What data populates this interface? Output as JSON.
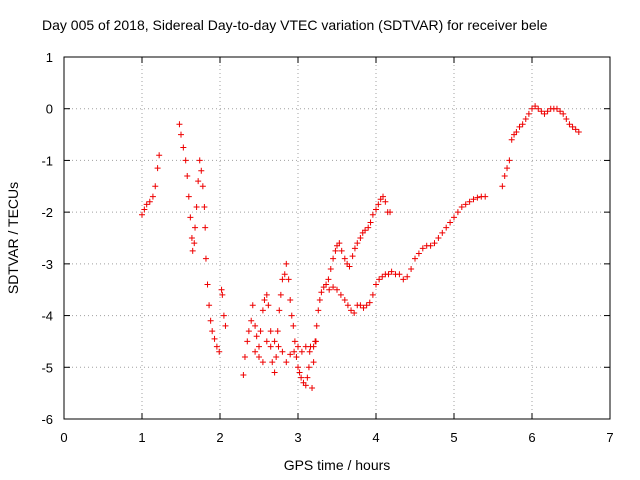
{
  "chart_data": {
    "type": "scatter",
    "title": "Day 005 of 2018, Sidereal Day-to-day VTEC variation (SDTVAR) for receiver bele",
    "xlabel": "GPS time / hours",
    "ylabel": "SDTVAR / TECUs",
    "xlim": [
      0,
      7
    ],
    "ylim": [
      -6,
      1
    ],
    "xticks": [
      0,
      1,
      2,
      3,
      4,
      5,
      6,
      7
    ],
    "yticks": [
      -6,
      -5,
      -4,
      -3,
      -2,
      -1,
      0,
      1
    ],
    "xtick_labels": [
      "0",
      "1",
      "2",
      "3",
      "4",
      "5",
      "6",
      "7"
    ],
    "ytick_labels": [
      "-6",
      "-5",
      "-4",
      "-3",
      "-2",
      "-1",
      "0",
      "1"
    ],
    "grid": true,
    "marker": "+",
    "color": "#ee0000",
    "segments": [
      [
        [
          1.0,
          -2.05
        ],
        [
          1.03,
          -1.95
        ],
        [
          1.06,
          -1.85
        ],
        [
          1.1,
          -1.8
        ],
        [
          1.14,
          -1.7
        ],
        [
          1.17,
          -1.5
        ],
        [
          1.2,
          -1.15
        ],
        [
          1.22,
          -0.9
        ]
      ],
      [
        [
          1.48,
          -0.3
        ],
        [
          1.5,
          -0.5
        ],
        [
          1.53,
          -0.75
        ],
        [
          1.56,
          -1.0
        ],
        [
          1.58,
          -1.3
        ],
        [
          1.6,
          -1.7
        ],
        [
          1.62,
          -2.1
        ],
        [
          1.64,
          -2.5
        ],
        [
          1.65,
          -2.75
        ],
        [
          1.67,
          -2.6
        ],
        [
          1.68,
          -2.3
        ],
        [
          1.7,
          -1.9
        ],
        [
          1.72,
          -1.4
        ],
        [
          1.74,
          -1.0
        ],
        [
          1.76,
          -1.2
        ],
        [
          1.78,
          -1.5
        ],
        [
          1.8,
          -1.9
        ],
        [
          1.81,
          -2.3
        ],
        [
          1.82,
          -2.9
        ],
        [
          1.84,
          -3.4
        ],
        [
          1.86,
          -3.8
        ],
        [
          1.88,
          -4.1
        ],
        [
          1.9,
          -4.3
        ],
        [
          1.93,
          -4.45
        ],
        [
          1.96,
          -4.6
        ],
        [
          1.99,
          -4.7
        ],
        [
          2.02,
          -3.5
        ],
        [
          2.03,
          -3.6
        ],
        [
          2.05,
          -4.0
        ],
        [
          2.07,
          -4.2
        ]
      ],
      [
        [
          2.3,
          -5.15
        ],
        [
          2.32,
          -4.8
        ],
        [
          2.35,
          -4.5
        ],
        [
          2.37,
          -4.3
        ],
        [
          2.4,
          -4.1
        ],
        [
          2.42,
          -3.8
        ],
        [
          2.45,
          -4.2
        ],
        [
          2.47,
          -4.4
        ],
        [
          2.5,
          -4.6
        ],
        [
          2.52,
          -4.3
        ],
        [
          2.55,
          -3.9
        ],
        [
          2.57,
          -3.7
        ],
        [
          2.6,
          -3.6
        ],
        [
          2.62,
          -3.8
        ],
        [
          2.65,
          -4.3
        ],
        [
          2.67,
          -4.9
        ],
        [
          2.7,
          -5.1
        ],
        [
          2.72,
          -4.8
        ],
        [
          2.74,
          -4.3
        ],
        [
          2.76,
          -3.9
        ],
        [
          2.78,
          -3.6
        ],
        [
          2.8,
          -3.3
        ],
        [
          2.83,
          -3.2
        ],
        [
          2.85,
          -3.0
        ],
        [
          2.88,
          -3.3
        ],
        [
          2.9,
          -3.7
        ],
        [
          2.92,
          -4.0
        ],
        [
          2.94,
          -4.2
        ],
        [
          2.96,
          -4.5
        ],
        [
          2.98,
          -4.8
        ],
        [
          3.0,
          -5.0
        ],
        [
          3.02,
          -5.1
        ],
        [
          3.04,
          -5.2
        ],
        [
          3.07,
          -5.3
        ],
        [
          3.1,
          -5.35
        ],
        [
          3.12,
          -5.2
        ],
        [
          3.14,
          -5.0
        ],
        [
          3.16,
          -4.6
        ]
      ],
      [
        [
          2.45,
          -4.7
        ],
        [
          2.5,
          -4.8
        ],
        [
          2.55,
          -4.9
        ],
        [
          2.6,
          -4.5
        ],
        [
          2.65,
          -4.6
        ],
        [
          2.7,
          -4.5
        ],
        [
          2.75,
          -4.6
        ],
        [
          2.8,
          -4.7
        ],
        [
          2.85,
          -4.9
        ],
        [
          2.9,
          -4.75
        ],
        [
          2.95,
          -4.7
        ],
        [
          3.0,
          -4.6
        ],
        [
          3.05,
          -4.7
        ],
        [
          3.1,
          -4.6
        ],
        [
          3.15,
          -4.7
        ],
        [
          3.2,
          -4.6
        ],
        [
          3.23,
          -4.5
        ]
      ],
      [
        [
          3.18,
          -5.4
        ],
        [
          3.2,
          -4.9
        ],
        [
          3.22,
          -4.5
        ],
        [
          3.24,
          -4.2
        ],
        [
          3.26,
          -3.9
        ],
        [
          3.28,
          -3.7
        ],
        [
          3.3,
          -3.55
        ],
        [
          3.33,
          -3.45
        ],
        [
          3.36,
          -3.4
        ],
        [
          3.39,
          -3.3
        ],
        [
          3.42,
          -3.1
        ],
        [
          3.45,
          -2.9
        ],
        [
          3.48,
          -2.75
        ],
        [
          3.5,
          -2.65
        ],
        [
          3.53,
          -2.6
        ],
        [
          3.56,
          -2.75
        ],
        [
          3.6,
          -2.9
        ],
        [
          3.63,
          -3.0
        ],
        [
          3.66,
          -3.05
        ],
        [
          3.7,
          -2.85
        ],
        [
          3.73,
          -2.7
        ],
        [
          3.76,
          -2.6
        ],
        [
          3.8,
          -2.5
        ],
        [
          3.83,
          -2.4
        ],
        [
          3.86,
          -2.35
        ],
        [
          3.9,
          -2.3
        ],
        [
          3.93,
          -2.2
        ],
        [
          3.96,
          -2.05
        ],
        [
          4.0,
          -1.95
        ],
        [
          4.03,
          -1.85
        ],
        [
          4.06,
          -1.75
        ],
        [
          4.09,
          -1.7
        ],
        [
          4.12,
          -1.8
        ],
        [
          4.15,
          -2.0
        ],
        [
          4.18,
          -2.0
        ]
      ],
      [
        [
          3.4,
          -3.5
        ],
        [
          3.45,
          -3.45
        ],
        [
          3.5,
          -3.5
        ],
        [
          3.55,
          -3.6
        ],
        [
          3.6,
          -3.7
        ],
        [
          3.64,
          -3.8
        ],
        [
          3.68,
          -3.9
        ],
        [
          3.72,
          -3.95
        ],
        [
          3.76,
          -3.8
        ],
        [
          3.8,
          -3.8
        ],
        [
          3.84,
          -3.85
        ],
        [
          3.88,
          -3.8
        ],
        [
          3.92,
          -3.75
        ],
        [
          3.96,
          -3.6
        ],
        [
          4.0,
          -3.4
        ],
        [
          4.04,
          -3.3
        ],
        [
          4.08,
          -3.25
        ],
        [
          4.12,
          -3.2
        ],
        [
          4.16,
          -3.2
        ],
        [
          4.2,
          -3.15
        ],
        [
          4.25,
          -3.2
        ],
        [
          4.3,
          -3.2
        ],
        [
          4.35,
          -3.3
        ],
        [
          4.4,
          -3.25
        ],
        [
          4.45,
          -3.1
        ],
        [
          4.5,
          -2.9
        ],
        [
          4.55,
          -2.8
        ],
        [
          4.6,
          -2.7
        ],
        [
          4.65,
          -2.65
        ],
        [
          4.7,
          -2.65
        ],
        [
          4.75,
          -2.6
        ],
        [
          4.8,
          -2.5
        ],
        [
          4.85,
          -2.4
        ],
        [
          4.9,
          -2.3
        ],
        [
          4.95,
          -2.2
        ],
        [
          5.0,
          -2.1
        ],
        [
          5.05,
          -2.0
        ],
        [
          5.1,
          -1.9
        ],
        [
          5.15,
          -1.85
        ],
        [
          5.2,
          -1.8
        ],
        [
          5.25,
          -1.75
        ],
        [
          5.3,
          -1.72
        ],
        [
          5.35,
          -1.7
        ],
        [
          5.4,
          -1.7
        ]
      ],
      [
        [
          5.62,
          -1.5
        ],
        [
          5.65,
          -1.3
        ],
        [
          5.68,
          -1.15
        ],
        [
          5.71,
          -1.0
        ],
        [
          5.74,
          -0.6
        ],
        [
          5.77,
          -0.5
        ],
        [
          5.8,
          -0.45
        ],
        [
          5.84,
          -0.35
        ],
        [
          5.88,
          -0.3
        ],
        [
          5.92,
          -0.2
        ],
        [
          5.96,
          -0.1
        ],
        [
          6.0,
          0.0
        ],
        [
          6.04,
          0.05
        ],
        [
          6.08,
          0.0
        ],
        [
          6.12,
          -0.05
        ],
        [
          6.16,
          -0.1
        ],
        [
          6.2,
          -0.05
        ],
        [
          6.24,
          0.0
        ],
        [
          6.28,
          0.0
        ],
        [
          6.32,
          0.0
        ],
        [
          6.36,
          -0.05
        ],
        [
          6.4,
          -0.1
        ],
        [
          6.44,
          -0.2
        ],
        [
          6.48,
          -0.3
        ],
        [
          6.52,
          -0.35
        ],
        [
          6.56,
          -0.4
        ],
        [
          6.6,
          -0.45
        ]
      ]
    ]
  }
}
